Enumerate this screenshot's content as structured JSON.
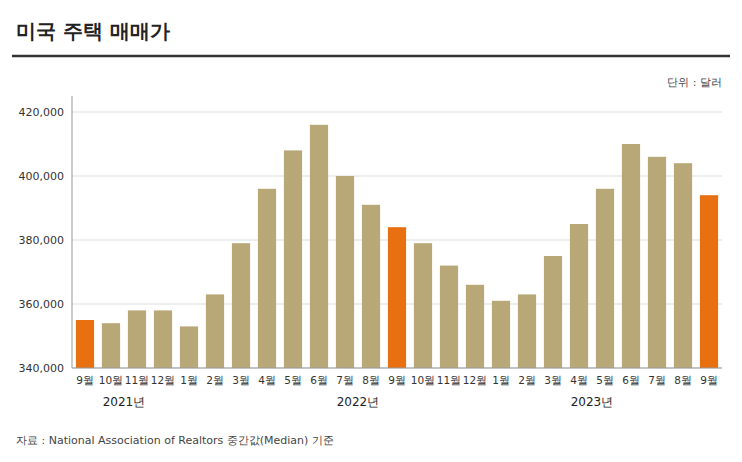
{
  "chart_data": {
    "type": "bar",
    "title": "미국 주택 매매가",
    "ylabel": "단위 : 달러",
    "categories": [
      "9월",
      "10월",
      "11월",
      "12월",
      "1월",
      "2월",
      "3월",
      "4월",
      "5월",
      "6월",
      "7월",
      "8월",
      "9월",
      "10월",
      "11월",
      "12월",
      "1월",
      "2월",
      "3월",
      "4월",
      "5월",
      "6월",
      "7월",
      "8월",
      "9월"
    ],
    "values": [
      355000,
      354000,
      358000,
      358000,
      353000,
      363000,
      379000,
      396000,
      408000,
      416000,
      400000,
      391000,
      384000,
      379000,
      372000,
      366000,
      361000,
      363000,
      375000,
      385000,
      396000,
      410000,
      406000,
      404000,
      394000
    ],
    "colors": [
      "#e87010",
      "#b8a878",
      "#b8a878",
      "#b8a878",
      "#b8a878",
      "#b8a878",
      "#b8a878",
      "#b8a878",
      "#b8a878",
      "#b8a878",
      "#b8a878",
      "#b8a878",
      "#e87010",
      "#b8a878",
      "#b8a878",
      "#b8a878",
      "#b8a878",
      "#b8a878",
      "#b8a878",
      "#b8a878",
      "#b8a878",
      "#b8a878",
      "#b8a878",
      "#b8a878",
      "#e87010"
    ],
    "ylim": [
      340000,
      425000
    ],
    "yticks": [
      {
        "value": 340000,
        "label": "340,000"
      },
      {
        "value": 360000,
        "label": "360,000"
      },
      {
        "value": 380000,
        "label": "380,000"
      },
      {
        "value": 400000,
        "label": "400,000"
      },
      {
        "value": 420000,
        "label": "420,000"
      }
    ],
    "grid": true,
    "annotations": [
      {
        "text": "2021년",
        "x": 1.5
      },
      {
        "text": "2022년",
        "x": 10.5
      },
      {
        "text": "2023년",
        "x": 19.5
      },
      {
        "text": "자료 : National Association of Realtors 중간값(Median) 기준"
      }
    ]
  }
}
